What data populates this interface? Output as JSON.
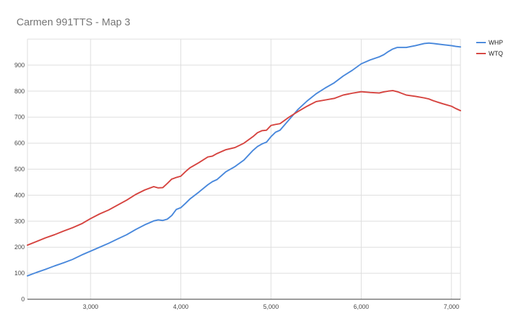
{
  "chart_data": {
    "type": "line",
    "title": "Carmen 991TTS - Map 3",
    "xlabel": "",
    "ylabel": "",
    "xlim": [
      2300,
      7100
    ],
    "ylim": [
      0,
      1000
    ],
    "x_ticks": [
      3000,
      4000,
      5000,
      6000,
      7000
    ],
    "x_tick_labels": [
      "3,000",
      "4,000",
      "5,000",
      "6,000",
      "7,000"
    ],
    "y_ticks": [
      0,
      100,
      200,
      300,
      400,
      500,
      600,
      700,
      800,
      900
    ],
    "y_tick_labels": [
      "0",
      "100",
      "200",
      "300",
      "400",
      "500",
      "600",
      "700",
      "800",
      "900"
    ],
    "grid": true,
    "legend_position": "right",
    "series": [
      {
        "name": "WHP",
        "color": "#4a89dc",
        "x": [
          2300,
          2400,
          2500,
          2600,
          2700,
          2800,
          2900,
          3000,
          3100,
          3200,
          3300,
          3400,
          3500,
          3600,
          3700,
          3750,
          3800,
          3850,
          3900,
          3950,
          4000,
          4050,
          4100,
          4200,
          4300,
          4350,
          4400,
          4500,
          4600,
          4700,
          4800,
          4850,
          4900,
          4950,
          5000,
          5050,
          5100,
          5200,
          5300,
          5400,
          5500,
          5600,
          5700,
          5800,
          5900,
          6000,
          6100,
          6200,
          6250,
          6300,
          6350,
          6400,
          6500,
          6600,
          6700,
          6750,
          6800,
          6900,
          7000,
          7050,
          7100
        ],
        "values": [
          90,
          103,
          115,
          128,
          140,
          153,
          170,
          185,
          200,
          215,
          232,
          248,
          268,
          286,
          301,
          305,
          303,
          308,
          322,
          345,
          352,
          368,
          385,
          412,
          440,
          452,
          460,
          490,
          510,
          535,
          572,
          587,
          597,
          604,
          625,
          642,
          650,
          690,
          730,
          762,
          790,
          812,
          832,
          858,
          880,
          905,
          920,
          932,
          940,
          952,
          962,
          968,
          968,
          975,
          983,
          985,
          983,
          979,
          975,
          972,
          970
        ]
      },
      {
        "name": "WTQ",
        "color": "#d64541",
        "x": [
          2300,
          2400,
          2500,
          2600,
          2700,
          2800,
          2900,
          3000,
          3100,
          3200,
          3300,
          3400,
          3500,
          3600,
          3700,
          3750,
          3800,
          3850,
          3900,
          3950,
          4000,
          4050,
          4100,
          4200,
          4300,
          4350,
          4400,
          4500,
          4600,
          4700,
          4800,
          4850,
          4900,
          4950,
          5000,
          5050,
          5100,
          5200,
          5300,
          5400,
          5500,
          5600,
          5700,
          5800,
          5900,
          6000,
          6100,
          6200,
          6250,
          6300,
          6350,
          6400,
          6500,
          6600,
          6700,
          6750,
          6800,
          6900,
          7000,
          7050,
          7100
        ],
        "values": [
          208,
          222,
          236,
          248,
          262,
          275,
          290,
          310,
          328,
          343,
          362,
          381,
          403,
          420,
          433,
          428,
          429,
          445,
          462,
          468,
          473,
          490,
          505,
          525,
          547,
          550,
          560,
          575,
          583,
          600,
          625,
          640,
          648,
          650,
          668,
          672,
          675,
          700,
          722,
          742,
          760,
          766,
          772,
          785,
          792,
          798,
          795,
          793,
          797,
          800,
          802,
          798,
          785,
          780,
          774,
          770,
          763,
          752,
          742,
          733,
          725
        ]
      }
    ]
  }
}
